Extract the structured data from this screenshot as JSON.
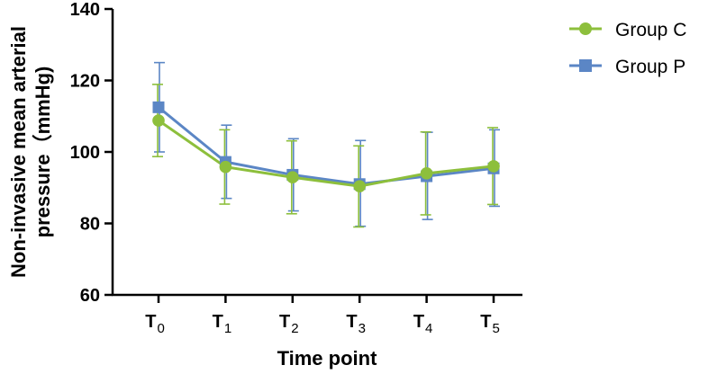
{
  "chart_data": {
    "type": "line",
    "title": "",
    "xlabel": "Time point",
    "ylabel_line1": "Non-invasive mean arterial",
    "ylabel_line2": "pressure（mmHg)",
    "ylim": [
      60,
      140
    ],
    "yticks": [
      60,
      80,
      100,
      120,
      140
    ],
    "categories": [
      {
        "main": "T",
        "sub": "0"
      },
      {
        "main": "T",
        "sub": "1"
      },
      {
        "main": "T",
        "sub": "2"
      },
      {
        "main": "T",
        "sub": "3"
      },
      {
        "main": "T",
        "sub": "4"
      },
      {
        "main": "T",
        "sub": "5"
      }
    ],
    "series": [
      {
        "name": "Group C",
        "marker": "circle",
        "color": "#8dbf3c",
        "values": [
          108.8,
          95.8,
          92.9,
          90.4,
          94.0,
          96.0
        ],
        "error_low": [
          98.7,
          85.4,
          82.7,
          79.0,
          82.4,
          85.3
        ],
        "error_high": [
          118.9,
          106.2,
          103.1,
          101.7,
          105.6,
          106.8
        ]
      },
      {
        "name": "Group P",
        "marker": "square",
        "color": "#5b86c5",
        "values": [
          112.5,
          97.2,
          93.6,
          91.0,
          93.2,
          95.4
        ],
        "error_low": [
          100.0,
          87.0,
          83.5,
          79.2,
          81.1,
          84.8
        ],
        "error_high": [
          125.0,
          107.5,
          103.7,
          103.2,
          105.5,
          106.2
        ]
      }
    ],
    "legend": [
      "Group C",
      "Group P"
    ],
    "legend_position": "top-right"
  }
}
